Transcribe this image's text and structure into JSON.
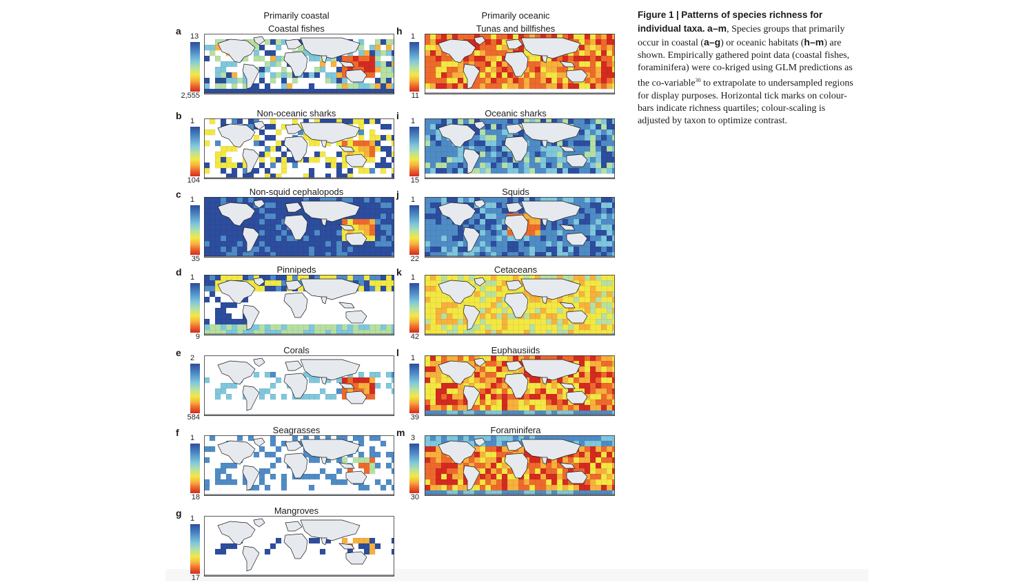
{
  "column_headings": {
    "coastal": "Primarily coastal",
    "oceanic": "Primarily oceanic"
  },
  "palette": [
    "#2d4d9e",
    "#4f8cc6",
    "#7fc7dc",
    "#b6e0a3",
    "#f3e843",
    "#f7b13c",
    "#ee6a2c",
    "#d42a20",
    "#ffffff",
    "#e6e9ee"
  ],
  "panels": [
    {
      "letter": "a",
      "title": "Coastal fishes",
      "scale_top": "13",
      "scale_bottom": "2,555",
      "column": "coastal",
      "pattern": "coastal_rich",
      "cells_visible_only": true
    },
    {
      "letter": "b",
      "title": "Non-oceanic sharks",
      "scale_top": "1",
      "scale_bottom": "104",
      "column": "coastal",
      "pattern": "coastal_sparse"
    },
    {
      "letter": "c",
      "title": "Non-squid cephalopods",
      "scale_top": "1",
      "scale_bottom": "35",
      "column": "coastal",
      "pattern": "full_blue"
    },
    {
      "letter": "d",
      "title": "Pinnipeds",
      "scale_top": "1",
      "scale_bottom": "9",
      "column": "coastal",
      "pattern": "polar"
    },
    {
      "letter": "e",
      "title": "Corals",
      "scale_top": "2",
      "scale_bottom": "584",
      "column": "coastal",
      "pattern": "tropical_sparse"
    },
    {
      "letter": "f",
      "title": "Seagrasses",
      "scale_top": "1",
      "scale_bottom": "18",
      "column": "coastal",
      "pattern": "coastal_sparse_blue"
    },
    {
      "letter": "g",
      "title": "Mangroves",
      "scale_top": "1",
      "scale_bottom": "17",
      "column": "coastal",
      "pattern": "mangrove"
    },
    {
      "letter": "h",
      "title": "Tunas and billfishes",
      "scale_top": "1",
      "scale_bottom": "11",
      "column": "oceanic",
      "pattern": "warm_full"
    },
    {
      "letter": "i",
      "title": "Oceanic sharks",
      "scale_top": "1",
      "scale_bottom": "15",
      "column": "oceanic",
      "pattern": "mixed_blue"
    },
    {
      "letter": "j",
      "title": "Squids",
      "scale_top": "1",
      "scale_bottom": "22",
      "column": "oceanic",
      "pattern": "mixed_blue2"
    },
    {
      "letter": "k",
      "title": "Cetaceans",
      "scale_top": "1",
      "scale_bottom": "42",
      "column": "oceanic",
      "pattern": "yellow_full"
    },
    {
      "letter": "l",
      "title": "Euphausiids",
      "scale_top": "1",
      "scale_bottom": "39",
      "column": "oceanic",
      "pattern": "warm_bands"
    },
    {
      "letter": "m",
      "title": "Foraminifera",
      "scale_top": "3",
      "scale_bottom": "30",
      "column": "oceanic",
      "pattern": "forams"
    }
  ],
  "caption": {
    "label": "Figure 1",
    "separator": "|",
    "title": "Patterns of species richness for individual taxa.",
    "range": "a–m",
    "text_1": ", Species groups that primarily occur in coastal (",
    "coastal_range": "a–g",
    "text_2": ") or oceanic habitats (",
    "oceanic_range": "h–m",
    "text_3": ") are shown. Empirically gathered point data (coastal fishes, foraminifera) were co-kriged using GLM predictions as the co-variable",
    "ref": "30",
    "text_4": " to extrapolate to undersampled regions for display purposes. Horizontal tick marks on colour-bars indicate richness quartiles; colour-scaling is adjusted by taxon to optimize contrast."
  }
}
